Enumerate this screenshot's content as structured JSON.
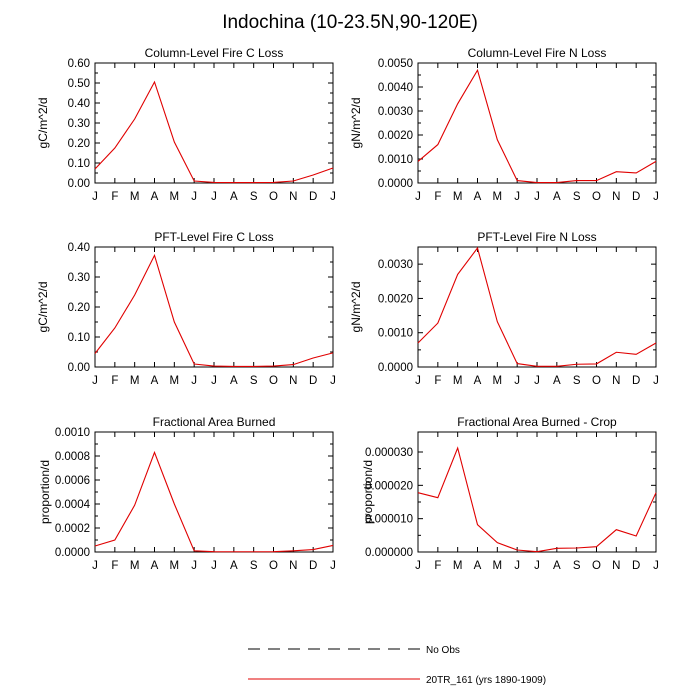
{
  "figure": {
    "title": "Indochina (10-23.5N,90-120E)"
  },
  "legend": {
    "entries": [
      {
        "label": "No Obs",
        "style": "dashed",
        "color": "#000000"
      },
      {
        "label": "20TR_161 (yrs 1890-1909)",
        "style": "solid",
        "color": "#e00000"
      }
    ]
  },
  "chart_data": [
    {
      "type": "line",
      "title": "Column-Level Fire C Loss",
      "ylabel": "gC/m^2/d",
      "categories": [
        "J",
        "F",
        "M",
        "A",
        "M",
        "J",
        "J",
        "A",
        "S",
        "O",
        "N",
        "D",
        "J"
      ],
      "ylim": [
        0,
        0.6
      ],
      "yticks": [
        0,
        0.1,
        0.2,
        0.3,
        0.4,
        0.5,
        0.6
      ],
      "ytick_labels": [
        "0.00",
        "0.10",
        "0.20",
        "0.30",
        "0.40",
        "0.50",
        "0.60"
      ],
      "series": [
        {
          "name": "20TR_161 (yrs 1890-1909)",
          "color": "#e00000",
          "values": [
            0.07,
            0.175,
            0.32,
            0.505,
            0.205,
            0.01,
            0.003,
            0.002,
            0.002,
            0.003,
            0.01,
            0.04,
            0.075
          ]
        }
      ]
    },
    {
      "type": "line",
      "title": "Column-Level Fire N Loss",
      "ylabel": "gN/m^2/d",
      "categories": [
        "J",
        "F",
        "M",
        "A",
        "M",
        "J",
        "J",
        "A",
        "S",
        "O",
        "N",
        "D",
        "J"
      ],
      "ylim": [
        0,
        0.005
      ],
      "yticks": [
        0,
        0.001,
        0.002,
        0.003,
        0.004,
        0.005
      ],
      "ytick_labels": [
        "0.0000",
        "0.0010",
        "0.0020",
        "0.0030",
        "0.0040",
        "0.0050"
      ],
      "series": [
        {
          "name": "20TR_161 (yrs 1890-1909)",
          "color": "#e00000",
          "values": [
            0.0009,
            0.0016,
            0.0033,
            0.0047,
            0.0018,
            0.0001,
            2e-05,
            2e-05,
            0.0001,
            0.0001,
            0.00047,
            0.00042,
            0.0009
          ]
        }
      ]
    },
    {
      "type": "line",
      "title": "PFT-Level Fire C Loss",
      "ylabel": "gC/m^2/d",
      "categories": [
        "J",
        "F",
        "M",
        "A",
        "M",
        "J",
        "J",
        "A",
        "S",
        "O",
        "N",
        "D",
        "J"
      ],
      "ylim": [
        0,
        0.4
      ],
      "yticks": [
        0,
        0.1,
        0.2,
        0.3,
        0.4
      ],
      "ytick_labels": [
        "0.00",
        "0.10",
        "0.20",
        "0.30",
        "0.40"
      ],
      "series": [
        {
          "name": "20TR_161 (yrs 1890-1909)",
          "color": "#e00000",
          "values": [
            0.045,
            0.13,
            0.24,
            0.372,
            0.15,
            0.01,
            0.003,
            0.002,
            0.002,
            0.003,
            0.008,
            0.03,
            0.047
          ]
        }
      ]
    },
    {
      "type": "line",
      "title": "PFT-Level Fire N Loss",
      "ylabel": "gN/m^2/d",
      "categories": [
        "J",
        "F",
        "M",
        "A",
        "M",
        "J",
        "J",
        "A",
        "S",
        "O",
        "N",
        "D",
        "J"
      ],
      "ylim": [
        0,
        0.0035
      ],
      "yticks": [
        0,
        0.001,
        0.002,
        0.003
      ],
      "ytick_labels": [
        "0.0000",
        "0.0010",
        "0.0020",
        "0.0030"
      ],
      "series": [
        {
          "name": "20TR_161 (yrs 1890-1909)",
          "color": "#e00000",
          "values": [
            0.0007,
            0.00128,
            0.0027,
            0.00347,
            0.00132,
            0.0001,
            2e-05,
            2e-05,
            8e-05,
            9e-05,
            0.00043,
            0.00037,
            0.0007
          ]
        }
      ]
    },
    {
      "type": "line",
      "title": "Fractional Area Burned",
      "ylabel": "proportion/d",
      "categories": [
        "J",
        "F",
        "M",
        "A",
        "M",
        "J",
        "J",
        "A",
        "S",
        "O",
        "N",
        "D",
        "J"
      ],
      "ylim": [
        0,
        0.001
      ],
      "yticks": [
        0,
        0.0002,
        0.0004,
        0.0006,
        0.0008,
        0.001
      ],
      "ytick_labels": [
        "0.0000",
        "0.0002",
        "0.0004",
        "0.0006",
        "0.0008",
        "0.0010"
      ],
      "series": [
        {
          "name": "20TR_161 (yrs 1890-1909)",
          "color": "#e00000",
          "values": [
            5e-05,
            0.0001,
            0.00039,
            0.00083,
            0.0004,
            1e-05,
            3e-06,
            2e-06,
            2e-06,
            3e-06,
            1e-05,
            2e-05,
            5.5e-05
          ]
        }
      ]
    },
    {
      "type": "line",
      "title": "Fractional Area Burned - Crop",
      "ylabel": "proportion/d",
      "categories": [
        "J",
        "F",
        "M",
        "A",
        "M",
        "J",
        "J",
        "A",
        "S",
        "O",
        "N",
        "D",
        "J"
      ],
      "ylim": [
        0,
        3.6e-05
      ],
      "yticks": [
        0,
        1e-05,
        2e-05,
        3e-05
      ],
      "ytick_labels": [
        "0.000000",
        "0.000010",
        "0.000020",
        "0.000030"
      ],
      "series": [
        {
          "name": "20TR_161 (yrs 1890-1909)",
          "color": "#e00000",
          "values": [
            1.78e-05,
            1.63e-05,
            3.12e-05,
            8.2e-06,
            2.8e-06,
            6e-07,
            1e-07,
            1.1e-06,
            1.2e-06,
            1.6e-06,
            6.7e-06,
            4.8e-06,
            1.78e-05
          ]
        }
      ]
    }
  ]
}
